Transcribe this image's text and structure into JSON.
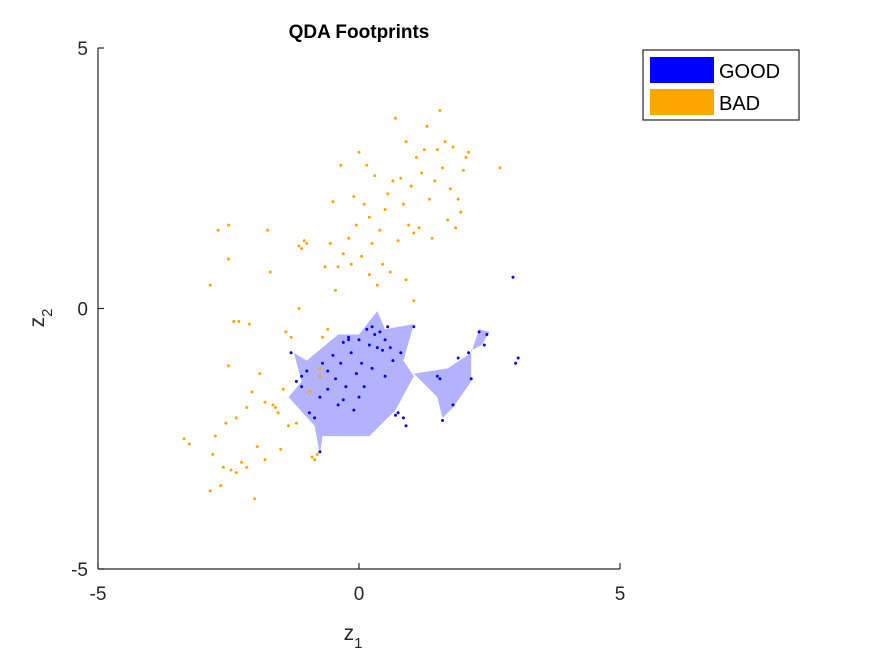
{
  "chart_data": {
    "type": "scatter",
    "title": "QDA Footprints",
    "xlabel": "z",
    "xlabel_sub": "1",
    "ylabel": "z",
    "ylabel_sub": "2",
    "xlim": [
      -5,
      5
    ],
    "ylim": [
      -5,
      5
    ],
    "xticks": [
      "-5",
      "0",
      "5"
    ],
    "yticks": [
      "-5",
      "0",
      "5"
    ],
    "grid": false,
    "legend_position": "top-right",
    "legend": [
      {
        "label": "GOOD",
        "color": "#0000ff"
      },
      {
        "label": "BAD",
        "color": "#ffa500"
      }
    ],
    "footprints": [
      {
        "name": "GOOD",
        "color": "#0000ff",
        "fill_opacity": 0.3,
        "polygons": [
          [
            [
              -1.25,
              -0.85
            ],
            [
              -1.0,
              -1.0
            ],
            [
              -0.4,
              -0.5
            ],
            [
              0.0,
              -0.5
            ],
            [
              0.35,
              -0.05
            ],
            [
              0.5,
              -0.4
            ],
            [
              1.05,
              -0.3
            ],
            [
              0.85,
              -1.0
            ],
            [
              1.05,
              -1.3
            ],
            [
              0.7,
              -1.95
            ],
            [
              0.2,
              -2.45
            ],
            [
              -0.4,
              -2.45
            ],
            [
              -0.7,
              -2.45
            ],
            [
              -0.75,
              -2.8
            ],
            [
              -0.85,
              -2.25
            ],
            [
              -1.35,
              -1.7
            ],
            [
              -1.1,
              -1.4
            ]
          ],
          [
            [
              1.05,
              -1.25
            ],
            [
              1.7,
              -1.15
            ],
            [
              2.0,
              -0.95
            ],
            [
              2.15,
              -0.85
            ],
            [
              2.3,
              -0.4
            ],
            [
              2.5,
              -0.45
            ],
            [
              2.35,
              -0.7
            ],
            [
              2.15,
              -0.8
            ],
            [
              2.15,
              -1.4
            ],
            [
              1.8,
              -1.9
            ],
            [
              1.6,
              -2.1
            ],
            [
              1.5,
              -1.7
            ]
          ]
        ]
      }
    ],
    "series": [
      {
        "name": "GOOD",
        "color": "#0000ff",
        "points": [
          [
            -1.3,
            -0.85
          ],
          [
            -1.2,
            -1.4
          ],
          [
            -1.1,
            -1.3
          ],
          [
            -1.1,
            -1.5
          ],
          [
            -1.0,
            -1.2
          ],
          [
            -0.95,
            -2.0
          ],
          [
            -0.85,
            -2.1
          ],
          [
            -0.75,
            -2.75
          ],
          [
            -0.75,
            -1.7
          ],
          [
            -0.7,
            -1.05
          ],
          [
            -0.6,
            -1.2
          ],
          [
            -0.5,
            -0.9
          ],
          [
            -0.45,
            -1.35
          ],
          [
            -0.4,
            -1.85
          ],
          [
            -0.35,
            -1.05
          ],
          [
            -0.3,
            -0.65
          ],
          [
            -0.25,
            -1.5
          ],
          [
            -0.2,
            -0.55
          ],
          [
            -0.15,
            -0.85
          ],
          [
            -0.1,
            -1.95
          ],
          [
            -0.05,
            -1.25
          ],
          [
            0.0,
            -0.6
          ],
          [
            0.05,
            -1.05
          ],
          [
            0.1,
            -1.5
          ],
          [
            0.15,
            -0.4
          ],
          [
            0.2,
            -0.7
          ],
          [
            0.25,
            -1.15
          ],
          [
            0.3,
            -0.5
          ],
          [
            0.35,
            -0.75
          ],
          [
            0.4,
            -0.45
          ],
          [
            0.45,
            -0.8
          ],
          [
            0.5,
            -0.6
          ],
          [
            0.55,
            -0.35
          ],
          [
            0.6,
            -0.75
          ],
          [
            0.65,
            -1.0
          ],
          [
            0.7,
            -2.05
          ],
          [
            0.75,
            -2.0
          ],
          [
            0.8,
            -0.85
          ],
          [
            0.85,
            -2.1
          ],
          [
            0.9,
            -2.25
          ],
          [
            -0.2,
            -0.6
          ],
          [
            0.0,
            -1.7
          ],
          [
            1.05,
            -0.35
          ],
          [
            1.5,
            -1.3
          ],
          [
            1.55,
            -1.35
          ],
          [
            1.6,
            -2.15
          ],
          [
            1.8,
            -1.85
          ],
          [
            1.9,
            -0.95
          ],
          [
            2.1,
            -0.85
          ],
          [
            2.15,
            -1.35
          ],
          [
            2.3,
            -0.45
          ],
          [
            2.45,
            -0.5
          ],
          [
            2.4,
            -0.7
          ],
          [
            2.95,
            0.6
          ],
          [
            3.0,
            -1.05
          ],
          [
            3.05,
            -0.95
          ],
          [
            -0.6,
            -1.55
          ],
          [
            -0.3,
            -1.75
          ],
          [
            0.25,
            -0.35
          ],
          [
            0.5,
            -1.3
          ]
        ]
      },
      {
        "name": "BAD",
        "color": "#ffa500",
        "points": [
          [
            -3.35,
            -2.5
          ],
          [
            -3.25,
            -2.6
          ],
          [
            -2.85,
            0.45
          ],
          [
            -2.85,
            -3.5
          ],
          [
            -2.8,
            -2.8
          ],
          [
            -2.75,
            -2.45
          ],
          [
            -2.7,
            1.5
          ],
          [
            -2.65,
            -3.4
          ],
          [
            -2.6,
            -3.05
          ],
          [
            -2.55,
            -2.2
          ],
          [
            -2.5,
            1.6
          ],
          [
            -2.5,
            0.95
          ],
          [
            -2.5,
            -1.1
          ],
          [
            -2.45,
            -3.1
          ],
          [
            -2.4,
            -0.25
          ],
          [
            -2.35,
            -3.15
          ],
          [
            -2.35,
            -2.1
          ],
          [
            -2.3,
            -0.25
          ],
          [
            -2.25,
            -2.95
          ],
          [
            -2.15,
            -3.05
          ],
          [
            -2.15,
            -1.9
          ],
          [
            -2.1,
            -0.3
          ],
          [
            -2.05,
            -1.6
          ],
          [
            -2.0,
            -3.65
          ],
          [
            -1.95,
            -2.65
          ],
          [
            -1.9,
            -1.25
          ],
          [
            -1.8,
            -1.8
          ],
          [
            -1.8,
            -2.9
          ],
          [
            -1.75,
            1.5
          ],
          [
            -1.7,
            0.7
          ],
          [
            -1.65,
            -1.85
          ],
          [
            -1.6,
            -1.9
          ],
          [
            -1.55,
            -2.0
          ],
          [
            -1.5,
            -2.7
          ],
          [
            -1.45,
            -1.55
          ],
          [
            -1.4,
            -0.45
          ],
          [
            -1.35,
            -2.25
          ],
          [
            -1.3,
            -0.55
          ],
          [
            -1.2,
            -2.2
          ],
          [
            -1.15,
            1.2
          ],
          [
            -1.1,
            1.15
          ],
          [
            -1.05,
            1.3
          ],
          [
            -1.0,
            1.25
          ],
          [
            -0.95,
            -1.6
          ],
          [
            -0.9,
            -2.85
          ],
          [
            -0.85,
            -2.9
          ],
          [
            -0.8,
            -2.8
          ],
          [
            -0.75,
            -1.3
          ],
          [
            -0.7,
            -0.55
          ],
          [
            -0.65,
            0.8
          ],
          [
            -0.6,
            -0.4
          ],
          [
            -0.55,
            1.25
          ],
          [
            -0.5,
            2.05
          ],
          [
            -0.45,
            0.35
          ],
          [
            -0.4,
            0.8
          ],
          [
            -0.35,
            2.75
          ],
          [
            -0.3,
            1.05
          ],
          [
            -0.2,
            1.35
          ],
          [
            -0.15,
            0.85
          ],
          [
            -0.1,
            2.15
          ],
          [
            -0.05,
            1.6
          ],
          [
            0.0,
            3.0
          ],
          [
            0.05,
            1.0
          ],
          [
            0.1,
            2.0
          ],
          [
            0.15,
            2.75
          ],
          [
            0.2,
            0.65
          ],
          [
            0.25,
            1.25
          ],
          [
            0.3,
            2.55
          ],
          [
            0.35,
            0.45
          ],
          [
            0.4,
            1.5
          ],
          [
            0.45,
            0.85
          ],
          [
            0.5,
            1.9
          ],
          [
            0.55,
            2.2
          ],
          [
            0.6,
            0.7
          ],
          [
            0.65,
            2.45
          ],
          [
            0.7,
            3.65
          ],
          [
            0.75,
            1.3
          ],
          [
            0.8,
            2.5
          ],
          [
            0.85,
            2.0
          ],
          [
            0.9,
            3.2
          ],
          [
            0.95,
            1.6
          ],
          [
            1.0,
            2.35
          ],
          [
            1.05,
            1.45
          ],
          [
            1.1,
            2.9
          ],
          [
            1.15,
            1.55
          ],
          [
            1.2,
            2.6
          ],
          [
            1.25,
            3.05
          ],
          [
            1.3,
            3.5
          ],
          [
            1.35,
            2.1
          ],
          [
            1.4,
            1.35
          ],
          [
            1.45,
            2.45
          ],
          [
            1.5,
            3.05
          ],
          [
            1.55,
            3.8
          ],
          [
            1.6,
            2.7
          ],
          [
            1.65,
            3.2
          ],
          [
            1.7,
            1.7
          ],
          [
            1.75,
            2.3
          ],
          [
            1.8,
            3.1
          ],
          [
            1.85,
            1.55
          ],
          [
            1.9,
            2.1
          ],
          [
            1.95,
            1.85
          ],
          [
            2.0,
            2.65
          ],
          [
            2.05,
            2.9
          ],
          [
            2.1,
            3.0
          ],
          [
            2.7,
            2.7
          ],
          [
            1.05,
            0.15
          ],
          [
            -0.75,
            -1.15
          ],
          [
            -1.15,
            0.0
          ],
          [
            0.2,
            1.75
          ],
          [
            0.9,
            0.55
          ]
        ]
      }
    ]
  }
}
